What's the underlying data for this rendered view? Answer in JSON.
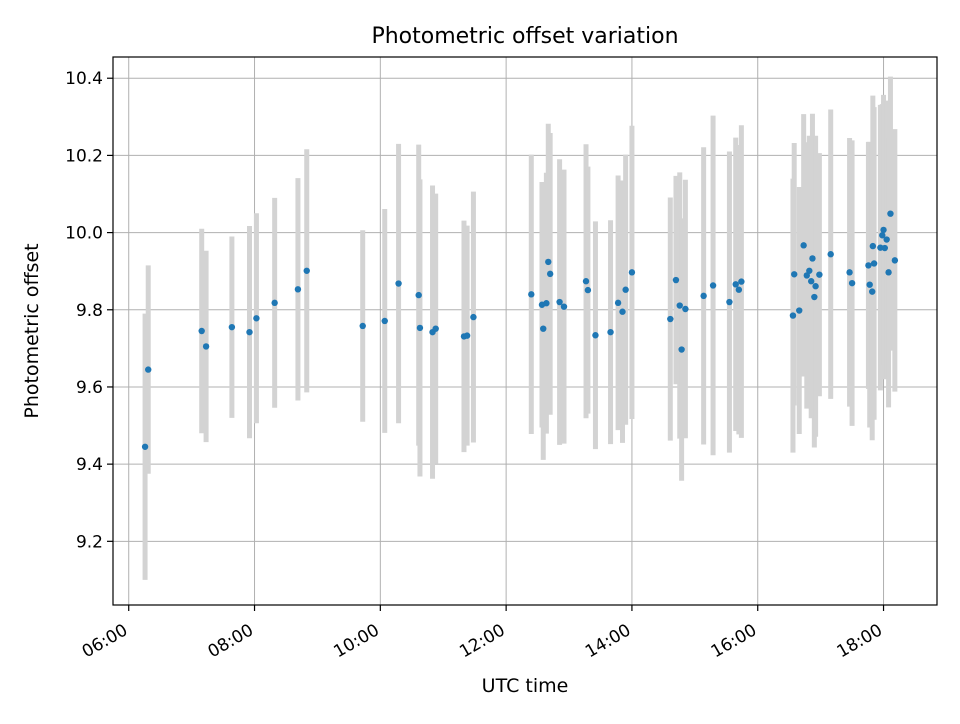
{
  "chart_data": {
    "type": "scatter",
    "title": "Photometric offset variation",
    "xlabel": "UTC time",
    "ylabel": "Photometric offset",
    "x_unit": "hours",
    "xlim": [
      5.75,
      18.85
    ],
    "ylim": [
      9.035,
      10.455
    ],
    "xticks": [
      {
        "value": 6,
        "label": "06:00"
      },
      {
        "value": 8,
        "label": "08:00"
      },
      {
        "value": 10,
        "label": "10:00"
      },
      {
        "value": 12,
        "label": "12:00"
      },
      {
        "value": 14,
        "label": "14:00"
      },
      {
        "value": 16,
        "label": "16:00"
      },
      {
        "value": 18,
        "label": "18:00"
      }
    ],
    "yticks": [
      {
        "value": 9.2,
        "label": "9.2"
      },
      {
        "value": 9.4,
        "label": "9.4"
      },
      {
        "value": 9.6,
        "label": "9.6"
      },
      {
        "value": 9.8,
        "label": "9.8"
      },
      {
        "value": 10.0,
        "label": "10.0"
      },
      {
        "value": 10.2,
        "label": "10.2"
      },
      {
        "value": 10.4,
        "label": "10.4"
      }
    ],
    "grid": true,
    "legend": "none",
    "colors": {
      "marker": "#1f77b4",
      "errorbar": "#d3d3d3",
      "grid": "#b0b0b0"
    },
    "series": [
      {
        "x": [
          6.26,
          6.31,
          7.16,
          7.23,
          7.64,
          7.92,
          8.03,
          8.32,
          8.69,
          8.83,
          9.72,
          10.07,
          10.29,
          10.61,
          10.63,
          10.83,
          10.88,
          11.33,
          11.38,
          11.48,
          12.4,
          12.57,
          12.59,
          12.64,
          12.67,
          12.7,
          12.85,
          12.92,
          13.27,
          13.3,
          13.42,
          13.66,
          13.78,
          13.85,
          13.9,
          14.0,
          14.61,
          14.7,
          14.76,
          14.79,
          14.85,
          15.14,
          15.29,
          15.55,
          15.65,
          15.7,
          15.74,
          16.56,
          16.58,
          16.66,
          16.73,
          16.78,
          16.82,
          16.85,
          16.87,
          16.9,
          16.92,
          16.98,
          17.16,
          17.46,
          17.5,
          17.76,
          17.78,
          17.82,
          17.83,
          17.85,
          17.95,
          17.98,
          18.0,
          18.02,
          18.05,
          18.08,
          18.11,
          18.18
        ],
        "y": [
          9.445,
          9.645,
          9.745,
          9.705,
          9.755,
          9.742,
          9.778,
          9.818,
          9.853,
          9.901,
          9.758,
          9.771,
          9.868,
          9.838,
          9.753,
          9.742,
          9.751,
          9.731,
          9.733,
          9.781,
          9.84,
          9.813,
          9.751,
          9.817,
          9.924,
          9.893,
          9.82,
          9.808,
          9.874,
          9.851,
          9.734,
          9.742,
          9.818,
          9.795,
          9.852,
          9.897,
          9.776,
          9.877,
          9.811,
          9.697,
          9.802,
          9.836,
          9.863,
          9.82,
          9.866,
          9.852,
          9.873,
          9.785,
          9.892,
          9.798,
          9.967,
          9.889,
          9.901,
          9.874,
          9.933,
          9.833,
          9.861,
          9.891,
          9.944,
          9.897,
          9.869,
          9.915,
          9.865,
          9.847,
          9.965,
          9.92,
          9.961,
          9.993,
          10.007,
          9.96,
          9.982,
          9.897,
          10.049,
          9.928
        ],
        "yerr": [
          0.345,
          0.27,
          0.265,
          0.248,
          0.235,
          0.275,
          0.272,
          0.272,
          0.288,
          0.315,
          0.248,
          0.29,
          0.362,
          0.39,
          0.385,
          0.38,
          0.35,
          0.3,
          0.285,
          0.325,
          0.362,
          0.318,
          0.34,
          0.338,
          0.358,
          0.365,
          0.37,
          0.355,
          0.355,
          0.32,
          0.295,
          0.29,
          0.33,
          0.34,
          0.35,
          0.38,
          0.315,
          0.27,
          0.345,
          0.34,
          0.335,
          0.385,
          0.44,
          0.39,
          0.38,
          0.375,
          0.405,
          0.355,
          0.34,
          0.32,
          0.34,
          0.345,
          0.35,
          0.355,
          0.375,
          0.39,
          0.39,
          0.315,
          0.375,
          0.348,
          0.37,
          0.32,
          0.37,
          0.385,
          0.39,
          0.405,
          0.37,
          0.34,
          0.35,
          0.34,
          0.36,
          0.35,
          0.355,
          0.34
        ]
      }
    ]
  }
}
